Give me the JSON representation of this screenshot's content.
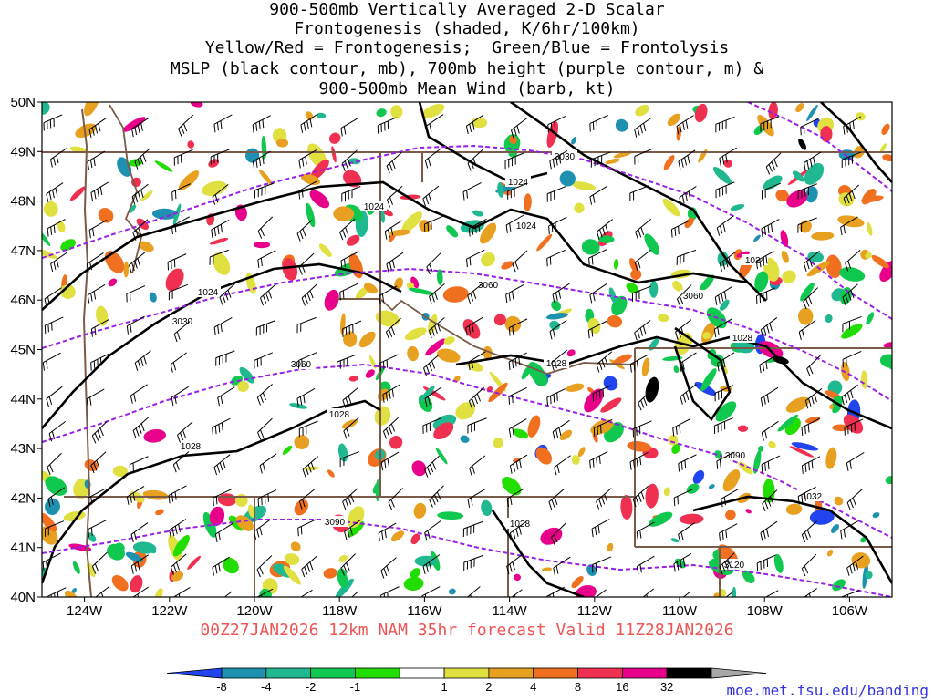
{
  "title_lines": [
    "900-500mb Vertically Averaged 2-D Scalar",
    "Frontogenesis (shaded, K/6hr/100km)",
    "Yellow/Red = Frontogenesis;  Green/Blue = Frontolysis",
    "MSLP (black contour, mb), 700mb height (purple contour, m) &",
    "900-500mb Mean Wind (barb, kt)"
  ],
  "latitude_labels": [
    "50N",
    "49N",
    "48N",
    "47N",
    "46N",
    "45N",
    "44N",
    "43N",
    "42N",
    "41N",
    "40N"
  ],
  "longitude_labels": [
    "124W",
    "122W",
    "120W",
    "118W",
    "116W",
    "114W",
    "112W",
    "110W",
    "108W",
    "106W"
  ],
  "valid_line": "00Z27JAN2026 12km NAM 35hr forecast Valid 11Z28JAN2026",
  "credit": "moe.met.fsu.edu/banding",
  "colorbar": {
    "labels": [
      "-8",
      "-4",
      "-2",
      "-1",
      "1",
      "2",
      "4",
      "8",
      "16",
      "32"
    ],
    "colors": [
      "#2244ee",
      "#1e90b0",
      "#20b890",
      "#10c850",
      "#22dd00",
      "#ffffff",
      "#e0e040",
      "#e8a020",
      "#f07020",
      "#f03050",
      "#e8008a",
      "#000000",
      "#a8a8a8"
    ]
  },
  "mslp_labels": [
    "1024",
    "1024",
    "1024",
    "1024",
    "1024",
    "1028",
    "1028",
    "1028",
    "1028",
    "1032",
    "1028"
  ],
  "height_labels": [
    "3030",
    "3060",
    "3060",
    "3030",
    "3060",
    "3090",
    "3090",
    "3120"
  ],
  "colors": {
    "mslp": "#000000",
    "height": "#9a1ee6",
    "borders": "#7a5a48",
    "valid": "#ee5555",
    "credit": "#3333dd"
  }
}
